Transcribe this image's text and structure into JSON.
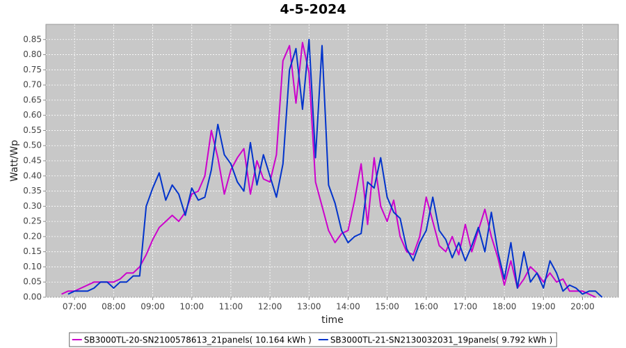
{
  "chart_data": {
    "type": "line",
    "title": "4-5-2024",
    "x_label": "time",
    "y_label": "Watt/Wp",
    "x": [
      "06:40",
      "06:50",
      "07:00",
      "07:10",
      "07:20",
      "07:30",
      "07:40",
      "07:50",
      "08:00",
      "08:10",
      "08:20",
      "08:30",
      "08:40",
      "08:50",
      "09:00",
      "09:10",
      "09:20",
      "09:30",
      "09:40",
      "09:50",
      "10:00",
      "10:10",
      "10:20",
      "10:30",
      "10:40",
      "10:50",
      "11:00",
      "11:10",
      "11:20",
      "11:30",
      "11:40",
      "11:50",
      "12:00",
      "12:10",
      "12:20",
      "12:30",
      "12:40",
      "12:50",
      "13:00",
      "13:10",
      "13:20",
      "13:30",
      "13:40",
      "13:50",
      "14:00",
      "14:10",
      "14:20",
      "14:30",
      "14:40",
      "14:50",
      "15:00",
      "15:10",
      "15:20",
      "15:30",
      "15:40",
      "15:50",
      "16:00",
      "16:10",
      "16:20",
      "16:30",
      "16:40",
      "16:50",
      "17:00",
      "17:10",
      "17:20",
      "17:30",
      "17:40",
      "17:50",
      "18:00",
      "18:10",
      "18:20",
      "18:30",
      "18:40",
      "18:50",
      "19:00",
      "19:10",
      "19:20",
      "19:30",
      "19:40",
      "19:50",
      "20:00",
      "20:10",
      "20:20",
      "20:30",
      "20:40"
    ],
    "series": [
      {
        "name": "SB3000TL-20-SN2100578613_21panels( 10.164 kWh )",
        "color": "#cc00cc",
        "values": [
          0.01,
          0.02,
          0.02,
          0.03,
          0.04,
          0.05,
          0.05,
          0.05,
          0.05,
          0.06,
          0.08,
          0.08,
          0.1,
          0.14,
          0.19,
          0.23,
          0.25,
          0.27,
          0.25,
          0.28,
          0.34,
          0.35,
          0.4,
          0.55,
          0.46,
          0.34,
          0.42,
          0.46,
          0.49,
          0.34,
          0.45,
          0.39,
          0.38,
          0.47,
          0.78,
          0.83,
          0.64,
          0.84,
          0.74,
          0.38,
          0.3,
          0.22,
          0.18,
          0.21,
          0.22,
          0.32,
          0.44,
          0.24,
          0.46,
          0.3,
          0.25,
          0.32,
          0.2,
          0.15,
          0.14,
          0.2,
          0.33,
          0.25,
          0.17,
          0.15,
          0.2,
          0.14,
          0.24,
          0.15,
          0.22,
          0.29,
          0.2,
          0.13,
          0.04,
          0.12,
          0.03,
          0.06,
          0.1,
          0.08,
          0.05,
          0.08,
          0.05,
          0.06,
          0.02,
          0.02,
          0.02,
          0.01,
          0.0,
          null,
          null
        ]
      },
      {
        "name": "SB3000TL-21-SN2130032031_19panels( 9.792 kWh )",
        "color": "#0033cc",
        "values": [
          null,
          0.01,
          0.02,
          0.02,
          0.02,
          0.03,
          0.05,
          0.05,
          0.03,
          0.05,
          0.05,
          0.07,
          0.07,
          0.3,
          0.36,
          0.41,
          0.32,
          0.37,
          0.34,
          0.27,
          0.36,
          0.32,
          0.33,
          0.42,
          0.57,
          0.47,
          0.44,
          0.38,
          0.35,
          0.51,
          0.37,
          0.47,
          0.4,
          0.33,
          0.44,
          0.75,
          0.82,
          0.62,
          0.85,
          0.46,
          0.83,
          0.37,
          0.31,
          0.22,
          0.18,
          0.2,
          0.21,
          0.38,
          0.36,
          0.46,
          0.33,
          0.28,
          0.26,
          0.16,
          0.12,
          0.18,
          0.22,
          0.33,
          0.22,
          0.19,
          0.13,
          0.18,
          0.12,
          0.17,
          0.23,
          0.15,
          0.28,
          0.15,
          0.06,
          0.18,
          0.03,
          0.15,
          0.05,
          0.08,
          0.03,
          0.12,
          0.08,
          0.02,
          0.04,
          0.03,
          0.01,
          0.02,
          0.02,
          0.0,
          null
        ]
      }
    ],
    "xlim": [
      "06:16",
      "20:55"
    ],
    "xticks": [
      "07:00",
      "08:00",
      "09:00",
      "10:00",
      "11:00",
      "12:00",
      "13:00",
      "14:00",
      "15:00",
      "16:00",
      "17:00",
      "18:00",
      "19:00",
      "20:00"
    ],
    "ylim": [
      0,
      0.9
    ],
    "yticks": [
      {
        "value": 0,
        "label": "0.00"
      },
      {
        "value": 0.05,
        "label": "0.05"
      },
      {
        "value": 0.1,
        "label": "0.10"
      },
      {
        "value": 0.15,
        "label": "0.15"
      },
      {
        "value": 0.2,
        "label": "0.20"
      },
      {
        "value": 0.25,
        "label": "0.25"
      },
      {
        "value": 0.3,
        "label": "0.30"
      },
      {
        "value": 0.35,
        "label": "0.35"
      },
      {
        "value": 0.4,
        "label": "0.40"
      },
      {
        "value": 0.45,
        "label": "0.45"
      },
      {
        "value": 0.5,
        "label": "0.50"
      },
      {
        "value": 0.55,
        "label": "0.55"
      },
      {
        "value": 0.6,
        "label": "0.60"
      },
      {
        "value": 0.65,
        "label": "0.65"
      },
      {
        "value": 0.7,
        "label": "0.70"
      },
      {
        "value": 0.75,
        "label": "0.75"
      },
      {
        "value": 0.8,
        "label": "0.80"
      },
      {
        "value": 0.85,
        "label": "0.85"
      }
    ],
    "grid": true,
    "legend": "bottom"
  }
}
